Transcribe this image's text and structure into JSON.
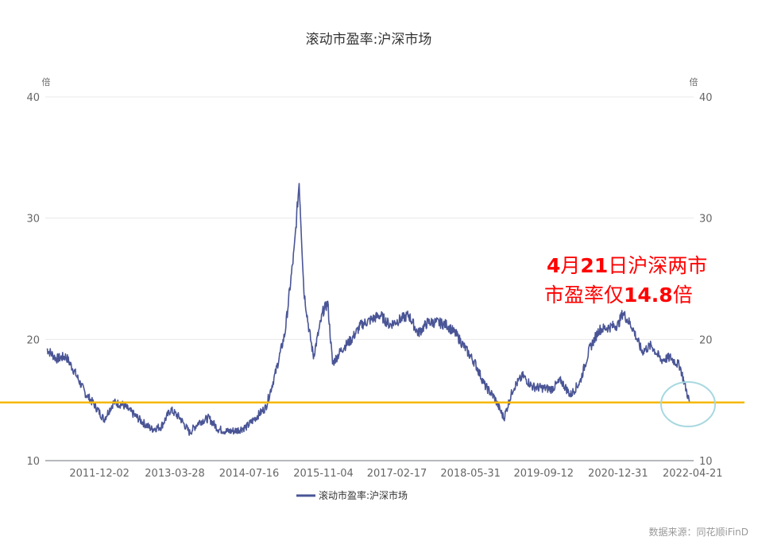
{
  "chart_data": {
    "type": "line",
    "title": "滚动市盈率:沪深市场",
    "y_unit_left": "倍",
    "y_unit_right": "倍",
    "ylim": [
      10,
      40
    ],
    "y_ticks": [
      "10",
      "20",
      "30",
      "40"
    ],
    "x_tick_labels": [
      "2011-12-02",
      "2013-03-28",
      "2014-07-16",
      "2015-11-04",
      "2017-02-17",
      "2018-05-31",
      "2019-09-12",
      "2020-12-31",
      "2022-04-21"
    ],
    "grid": true,
    "legend": "bottom-center",
    "reference_line": {
      "value": 14.8,
      "color": "#f5b800"
    },
    "series": [
      {
        "name": "滚动市盈率:沪深市场",
        "color": "#4a5596",
        "x": [
          "2011-01",
          "2011-03",
          "2011-05",
          "2011-07",
          "2011-09",
          "2011-11",
          "2012-01",
          "2012-03",
          "2012-05",
          "2012-07",
          "2012-09",
          "2012-11",
          "2013-01",
          "2013-03",
          "2013-05",
          "2013-07",
          "2013-09",
          "2013-11",
          "2014-01",
          "2014-03",
          "2014-05",
          "2014-07",
          "2014-09",
          "2014-11",
          "2015-01",
          "2015-03",
          "2015-05",
          "2015-06",
          "2015-07",
          "2015-08",
          "2015-09",
          "2015-11",
          "2015-12",
          "2016-01",
          "2016-03",
          "2016-05",
          "2016-07",
          "2016-09",
          "2016-11",
          "2017-01",
          "2017-03",
          "2017-05",
          "2017-07",
          "2017-09",
          "2017-11",
          "2018-01",
          "2018-03",
          "2018-05",
          "2018-07",
          "2018-09",
          "2018-11",
          "2019-01",
          "2019-03",
          "2019-05",
          "2019-07",
          "2019-09",
          "2019-11",
          "2020-01",
          "2020-03",
          "2020-05",
          "2020-07",
          "2020-09",
          "2020-11",
          "2021-01",
          "2021-02",
          "2021-04",
          "2021-06",
          "2021-08",
          "2021-10",
          "2021-12",
          "2022-02",
          "2022-04"
        ],
        "values": [
          19.2,
          18.4,
          18.6,
          17.2,
          15.6,
          14.6,
          13.4,
          14.8,
          14.6,
          13.9,
          13.2,
          12.6,
          12.8,
          14.2,
          13.5,
          12.3,
          13.2,
          13.5,
          12.6,
          12.4,
          12.5,
          12.8,
          13.6,
          14.4,
          17.2,
          20.5,
          27.5,
          33.0,
          24.0,
          21.0,
          18.6,
          22.3,
          23.0,
          18.0,
          19.2,
          20.0,
          21.2,
          21.6,
          22.0,
          21.2,
          21.6,
          22.0,
          20.5,
          21.4,
          21.4,
          21.2,
          20.4,
          19.2,
          18.0,
          16.2,
          15.2,
          13.5,
          16.0,
          17.0,
          16.1,
          16.0,
          15.9,
          16.6,
          15.4,
          16.5,
          19.2,
          20.8,
          21.0,
          21.2,
          22.2,
          21.0,
          19.0,
          19.5,
          18.3,
          18.5,
          17.8,
          14.8
        ]
      }
    ]
  },
  "legend_label": "滚动市盈率:沪深市场",
  "annotation": {
    "line1_num1": "4",
    "line1_char1": "月",
    "line1_num2": "21",
    "line1_char2": "日沪深两市",
    "line2_text": "市盈率仅",
    "line2_num": "14.8",
    "line2_char": "倍",
    "color": "#ff0000"
  },
  "source": "数据来源：同花顺iFinD",
  "colors": {
    "circle": "#a8d8e0",
    "grid": "#e8e8e8",
    "axis": "#6e7079"
  }
}
